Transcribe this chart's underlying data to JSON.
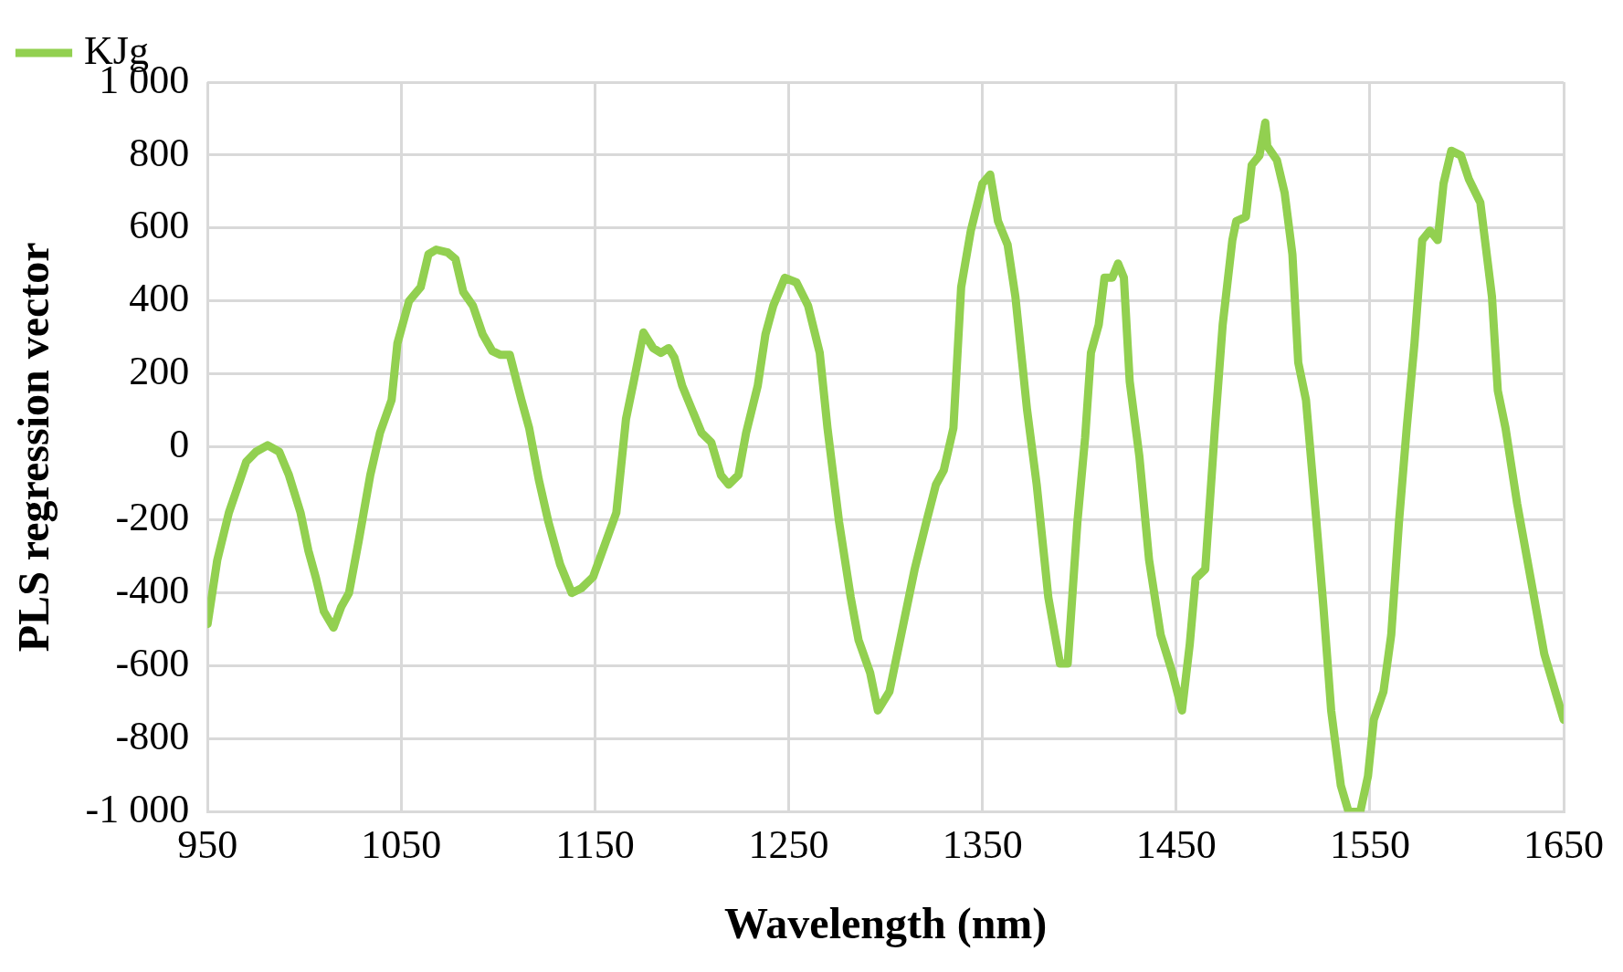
{
  "chart_data": {
    "type": "line",
    "xlabel": "Wavelength (nm)",
    "ylabel": "PLS regression vector",
    "xlim": [
      950,
      1650
    ],
    "xticks": [
      950,
      1050,
      1150,
      1250,
      1350,
      1450,
      1550,
      1650
    ],
    "ylim": [
      -1000,
      1000
    ],
    "yticks": [
      {
        "value": -1000,
        "label": "-1 000"
      },
      -800,
      -600,
      -400,
      -200,
      0,
      200,
      400,
      600,
      800,
      {
        "value": 1000,
        "label": "1 000"
      }
    ],
    "grid": true,
    "legend": "top left",
    "marker": "none",
    "line_style": "solid",
    "series": [
      {
        "name": "KJg",
        "color": "#92d050",
        "x": [
          950,
          955,
          961,
          970,
          975,
          981,
          987,
          992,
          998,
          1002,
          1006,
          1010,
          1015,
          1019,
          1023,
          1028,
          1034,
          1039,
          1045,
          1048,
          1054,
          1060,
          1064,
          1068,
          1074,
          1078,
          1082,
          1087,
          1092,
          1097,
          1101,
          1106,
          1112,
          1116,
          1121,
          1126,
          1132,
          1138,
          1143,
          1149,
          1154,
          1161,
          1166,
          1170,
          1175,
          1180,
          1184,
          1188,
          1191,
          1195,
          1199,
          1205,
          1210,
          1215,
          1219,
          1224,
          1228,
          1234,
          1238,
          1242,
          1248,
          1254,
          1260,
          1266,
          1270,
          1276,
          1282,
          1286,
          1292,
          1296,
          1302,
          1307,
          1315,
          1321,
          1326,
          1330,
          1335,
          1339,
          1344,
          1350,
          1354,
          1358,
          1363,
          1367,
          1373,
          1378,
          1384,
          1390,
          1394,
          1399,
          1403,
          1406,
          1410,
          1413,
          1417,
          1420,
          1423,
          1426,
          1431,
          1436,
          1442,
          1448,
          1453,
          1457,
          1460,
          1465,
          1470,
          1474,
          1479,
          1481,
          1486,
          1489,
          1493,
          1496,
          1497,
          1502,
          1506,
          1510,
          1513,
          1517,
          1522,
          1526,
          1530,
          1535,
          1539,
          1545,
          1549,
          1552,
          1557,
          1561,
          1565,
          1569,
          1573,
          1577,
          1581,
          1585,
          1588,
          1592,
          1597,
          1601,
          1607,
          1613,
          1616,
          1620,
          1626,
          1633,
          1640,
          1650
        ],
        "values": [
          -485,
          -310,
          -180,
          -40,
          -13,
          5,
          -13,
          -77,
          -180,
          -283,
          -360,
          -450,
          -495,
          -438,
          -400,
          -258,
          -77,
          39,
          129,
          284,
          400,
          438,
          528,
          541,
          533,
          515,
          425,
          387,
          309,
          263,
          253,
          253,
          129,
          52,
          -90,
          -206,
          -322,
          -400,
          -387,
          -356,
          -283,
          -180,
          77,
          180,
          314,
          271,
          258,
          271,
          245,
          168,
          116,
          39,
          13,
          -77,
          -103,
          -77,
          39,
          168,
          309,
          387,
          464,
          451,
          387,
          258,
          52,
          -206,
          -412,
          -528,
          -618,
          -722,
          -670,
          -541,
          -335,
          -206,
          -103,
          -64,
          52,
          438,
          593,
          722,
          747,
          619,
          554,
          412,
          103,
          -103,
          -412,
          -593,
          -593,
          -206,
          26,
          258,
          335,
          464,
          464,
          503,
          464,
          180,
          -26,
          -309,
          -515,
          -618,
          -722,
          -541,
          -361,
          -335,
          52,
          335,
          567,
          619,
          631,
          773,
          799,
          889,
          825,
          786,
          696,
          528,
          232,
          129,
          -180,
          -438,
          -722,
          -928,
          -1000,
          -1000,
          -902,
          -747,
          -670,
          -515,
          -206,
          52,
          284,
          567,
          593,
          567,
          722,
          812,
          799,
          735,
          670,
          412,
          155,
          52,
          -155,
          -361,
          -567,
          -747
        ]
      }
    ]
  }
}
